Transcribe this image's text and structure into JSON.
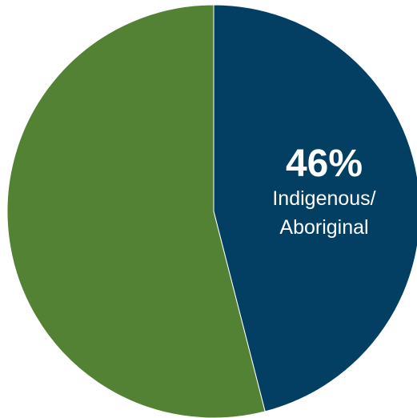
{
  "chart_data": {
    "type": "pie",
    "title": "",
    "slices": [
      {
        "label_lines": [
          "Indigenous/",
          "Aboriginal"
        ],
        "value": 46,
        "value_label": "46%",
        "color": "#033f63"
      },
      {
        "label_lines": [],
        "value": 54,
        "value_label": "",
        "color": "#548235"
      }
    ],
    "start_angle_deg": 0,
    "direction": "clockwise",
    "legend": "none"
  }
}
